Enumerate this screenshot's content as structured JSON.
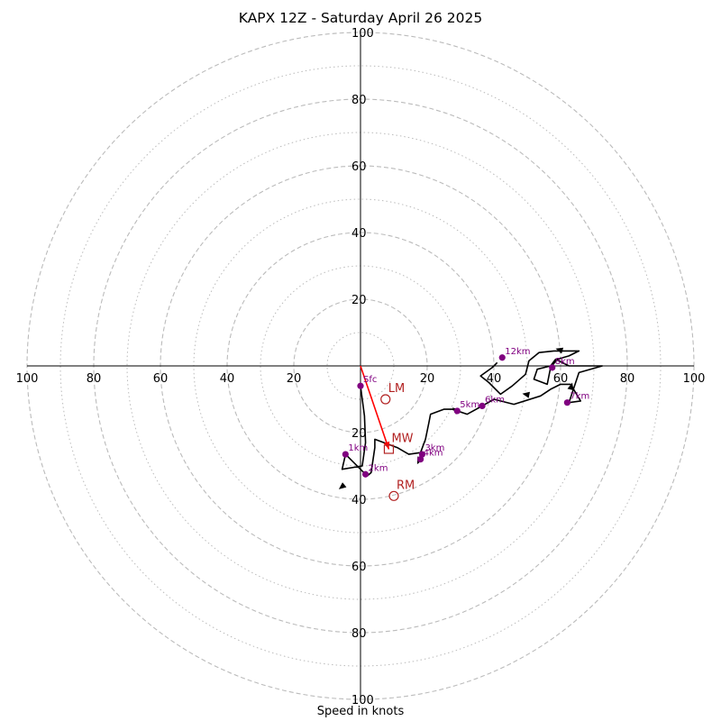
{
  "chart_data": {
    "type": "hodograph",
    "title": "KAPX 12Z - Saturday April 26 2025",
    "xlabel": "Speed in knots",
    "range": 100,
    "ring_major": [
      20,
      40,
      60,
      80,
      100
    ],
    "ring_minor": [
      10,
      30,
      50,
      70,
      90
    ],
    "x_tick_labels": [
      "100",
      "80",
      "60",
      "40",
      "20",
      "20",
      "40",
      "60",
      "80",
      "100"
    ],
    "x_tick_values": [
      -100,
      -80,
      -60,
      -40,
      -20,
      20,
      40,
      60,
      80,
      100
    ],
    "y_tick_labels": [
      "100",
      "80",
      "60",
      "40",
      "20",
      "20",
      "40",
      "60",
      "80",
      "100"
    ],
    "y_tick_values": [
      100,
      80,
      60,
      40,
      20,
      -20,
      -40,
      -60,
      -80,
      -100
    ],
    "hodograph_trace": [
      [
        0,
        -6
      ],
      [
        1.2,
        -15
      ],
      [
        1.5,
        -23
      ],
      [
        0.5,
        -30
      ],
      [
        -5.5,
        -31
      ],
      [
        -4.5,
        -26.5
      ],
      [
        2,
        -33
      ],
      [
        3.2,
        -32
      ],
      [
        4.3,
        -24.5
      ],
      [
        4.3,
        -22
      ],
      [
        11,
        -24.5
      ],
      [
        14.5,
        -26.5
      ],
      [
        18,
        -26
      ],
      [
        19.5,
        -22
      ],
      [
        20.5,
        -17
      ],
      [
        21,
        -14.5
      ],
      [
        25,
        -13
      ],
      [
        27.5,
        -13
      ],
      [
        29,
        -13.5
      ],
      [
        32,
        -14.5
      ],
      [
        36.5,
        -12
      ],
      [
        40,
        -10
      ],
      [
        46,
        -11.5
      ],
      [
        54,
        -9
      ],
      [
        57,
        -7
      ],
      [
        60,
        -5.5
      ],
      [
        63,
        -5.5
      ],
      [
        66,
        -10.5
      ],
      [
        62.5,
        -11
      ],
      [
        65.5,
        -2
      ],
      [
        72.5,
        0
      ],
      [
        62.5,
        0
      ],
      [
        58.5,
        2
      ],
      [
        57,
        0
      ],
      [
        53,
        -1
      ],
      [
        52,
        -4
      ],
      [
        56,
        -5.5
      ],
      [
        57,
        -0.5
      ],
      [
        59,
        2
      ],
      [
        62.5,
        3
      ],
      [
        65.5,
        4.5
      ],
      [
        58,
        4.5
      ],
      [
        53.5,
        4
      ],
      [
        50.5,
        1.5
      ],
      [
        49.5,
        -2.5
      ],
      [
        45.5,
        -6
      ],
      [
        42,
        -8.5
      ],
      [
        38.5,
        -5
      ],
      [
        36,
        -3
      ],
      [
        39.5,
        -0.5
      ],
      [
        41,
        1
      ]
    ],
    "trace_arrows": [
      {
        "at": [
          -6.5,
          -37
        ],
        "from": [
          -4,
          -35
        ]
      },
      {
        "at": [
          27.5,
          -12.5
        ],
        "from": [
          29.5,
          -14
        ]
      },
      {
        "at": [
          48.5,
          -8.3
        ],
        "from": [
          51,
          -8.8
        ]
      },
      {
        "at": [
          63.5,
          -5
        ],
        "from": [
          63,
          -7
        ]
      },
      {
        "at": [
          58.5,
          5.2
        ],
        "from": [
          60.5,
          4.6
        ]
      },
      {
        "at": [
          17,
          -29.5
        ],
        "from": [
          18,
          -27.5
        ]
      }
    ],
    "height_points": [
      {
        "label": "Sfc",
        "x": 0,
        "y": -6
      },
      {
        "label": "1km",
        "x": -4.5,
        "y": -26.5
      },
      {
        "label": "2km",
        "x": 1.5,
        "y": -32.5
      },
      {
        "label": "3km",
        "x": 18.5,
        "y": -26.5
      },
      {
        "label": "4km",
        "x": 18,
        "y": -28
      },
      {
        "label": "5km",
        "x": 29,
        "y": -13.5
      },
      {
        "label": "6km",
        "x": 36.5,
        "y": -12
      },
      {
        "label": "7km",
        "x": 62,
        "y": -11
      },
      {
        "label": "8km",
        "x": 57.5,
        "y": -0.5
      },
      {
        "label": "12km",
        "x": 42.5,
        "y": 2.5
      }
    ],
    "storm_motion": [
      {
        "label": "LM",
        "x": 7.5,
        "y": -10,
        "marker": "circle"
      },
      {
        "label": "MW",
        "x": 8.5,
        "y": -25,
        "marker": "square"
      },
      {
        "label": "RM",
        "x": 10,
        "y": -39,
        "marker": "circle"
      }
    ],
    "shear_vector": {
      "from": [
        0,
        0
      ],
      "to": [
        8.5,
        -25
      ]
    },
    "colors": {
      "trace": "#000000",
      "height_point": "#800080",
      "storm_marker": "#b22222",
      "shear_vector": "#ff0000",
      "ring": "#bbbbbb",
      "axis": "#000000"
    }
  }
}
